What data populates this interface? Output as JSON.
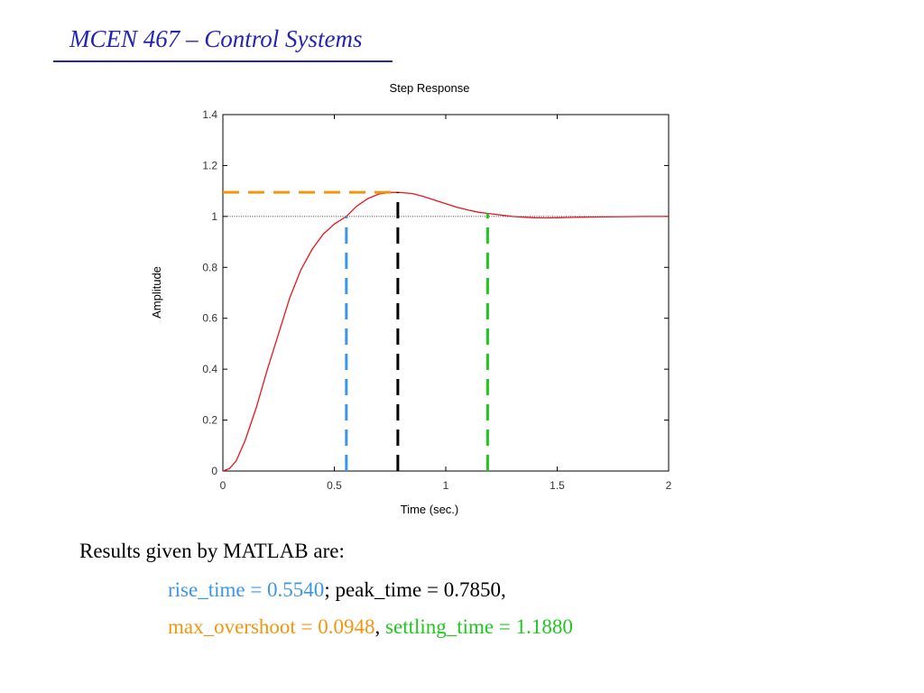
{
  "slide": {
    "header_title": "MCEN 467 – Control Systems"
  },
  "chart_data": {
    "type": "line",
    "title": "Step Response",
    "xlabel": "Time (sec.)",
    "ylabel": "Amplitude",
    "xlim": [
      0,
      2
    ],
    "ylim": [
      0,
      1.4
    ],
    "grid": false,
    "xticks": [
      0,
      0.5,
      1,
      1.5,
      2
    ],
    "xtick_labels": [
      "0",
      "0.5",
      "1",
      "1.5",
      "2"
    ],
    "yticks": [
      0,
      0.2,
      0.4,
      0.6,
      0.8,
      1,
      1.2,
      1.4
    ],
    "ytick_labels": [
      "0",
      "0.2",
      "0.4",
      "0.6",
      "0.8",
      "1",
      "1.2",
      "1.4"
    ],
    "series": [
      {
        "color": "#e8141e",
        "x": [
          0,
          0.03,
          0.06,
          0.1,
          0.15,
          0.2,
          0.25,
          0.3,
          0.35,
          0.4,
          0.45,
          0.5,
          0.554,
          0.6,
          0.65,
          0.7,
          0.75,
          0.785,
          0.85,
          0.9,
          0.95,
          1.0,
          1.05,
          1.1,
          1.15,
          1.188,
          1.25,
          1.3,
          1.35,
          1.4,
          1.45,
          1.5,
          1.55,
          1.6,
          1.7,
          1.8,
          1.9,
          2.0
        ],
        "y": [
          0,
          0.01,
          0.04,
          0.12,
          0.25,
          0.4,
          0.54,
          0.68,
          0.79,
          0.87,
          0.93,
          0.97,
          1.0,
          1.04,
          1.07,
          1.088,
          1.094,
          1.095,
          1.09,
          1.078,
          1.064,
          1.05,
          1.036,
          1.025,
          1.016,
          1.012,
          1.005,
          1.0,
          0.997,
          0.995,
          0.994,
          0.995,
          0.996,
          0.997,
          0.998,
          0.999,
          1.0,
          1.0
        ]
      }
    ],
    "reference_line": {
      "y": 1,
      "color": "#000000",
      "style": "dotted"
    },
    "markers": [
      {
        "kind": "vertical",
        "x": 0.554,
        "y_from": 0,
        "y_to": 1.0,
        "color": "#3b96e8",
        "style": "dashed"
      },
      {
        "kind": "vertical",
        "x": 0.785,
        "y_from": 0,
        "y_to": 1.0948,
        "color": "#000000",
        "style": "dashed"
      },
      {
        "kind": "vertical",
        "x": 1.188,
        "y_from": 0,
        "y_to": 1.012,
        "color": "#1ec81e",
        "style": "dashed"
      },
      {
        "kind": "horizontal",
        "y": 1.0948,
        "x_from": 0,
        "x_to": 0.785,
        "color": "#f0960f",
        "style": "dashed"
      }
    ]
  },
  "results": {
    "intro": "Results given by MATLAB are:",
    "rise_time_text": "rise_time = 0.5540",
    "sep1": "; ",
    "peak_time_text": "peak_time = 0.7850,",
    "max_overshoot_text": "max_overshoot = 0.0948",
    "sep2": ", ",
    "settling_time_text": "settling_time = 1.1880",
    "colors": {
      "rise_time": "#3b96e8",
      "max_overshoot": "#f0960f",
      "settling_time": "#1ec81e"
    }
  }
}
